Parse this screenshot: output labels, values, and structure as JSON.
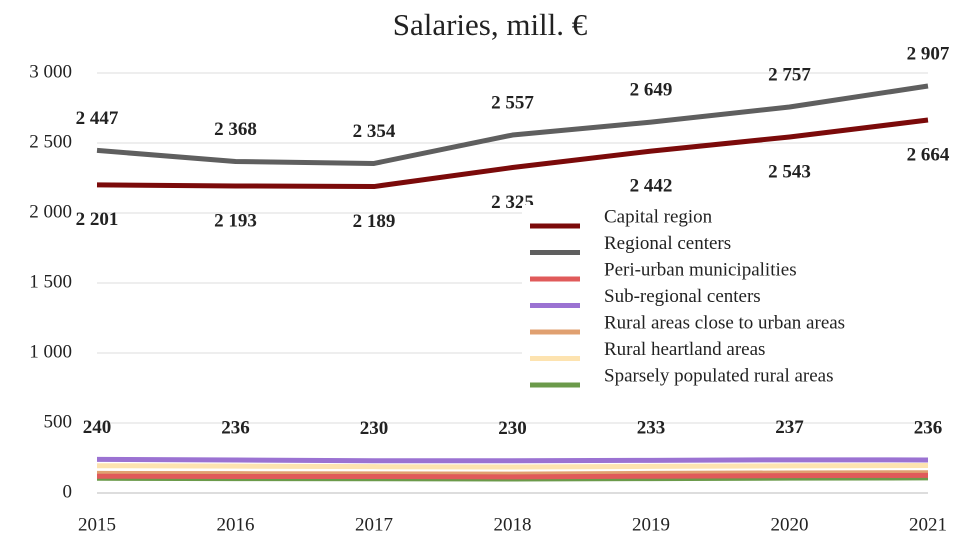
{
  "chart_data": {
    "type": "line",
    "title": "Salaries, mill. €",
    "x": [
      2015,
      2016,
      2017,
      2018,
      2019,
      2020,
      2021
    ],
    "xlim": [
      2015,
      2021
    ],
    "ylim": [
      0,
      3000
    ],
    "yticks": [
      0,
      500,
      {
        "value": 1000,
        "label": "1 000"
      },
      {
        "value": 1500,
        "label": "1 500"
      },
      {
        "value": 2000,
        "label": "2 000"
      },
      {
        "value": 2500,
        "label": "2 500"
      },
      {
        "value": 3000,
        "label": "3 000"
      }
    ],
    "grid": true,
    "legend": "right",
    "series": [
      {
        "name": "Capital region",
        "color": "#7b0a0a",
        "values": [
          2201,
          2193,
          2189,
          2325,
          2442,
          2543,
          2664
        ],
        "value_labels": [
          "2 201",
          "2 193",
          "2 189",
          "2 325",
          "2 442",
          "2 543",
          "2 664"
        ],
        "label_side": "below"
      },
      {
        "name": "Regional centers",
        "color": "#5f5f5f",
        "values": [
          2447,
          2368,
          2354,
          2557,
          2649,
          2757,
          2907
        ],
        "value_labels": [
          "2 447",
          "2 368",
          "2 354",
          "2 557",
          "2 649",
          "2 757",
          "2 907"
        ],
        "label_side": "above"
      },
      {
        "name": "Peri-urban municipalities",
        "color": "#e05a5a",
        "values": [
          120,
          118,
          118,
          115,
          120,
          124,
          126
        ]
      },
      {
        "name": "Sub-regional centers",
        "color": "#9b72d2",
        "values": [
          240,
          236,
          230,
          230,
          233,
          237,
          236
        ],
        "label_side": "above"
      },
      {
        "name": "Rural areas close to urban areas",
        "color": "#e0a070",
        "values": [
          140,
          138,
          137,
          135,
          140,
          143,
          145
        ]
      },
      {
        "name": "Rural heartland areas",
        "color": "#fde3b0",
        "values": [
          195,
          192,
          188,
          186,
          190,
          194,
          196
        ]
      },
      {
        "name": "Sparsely populated rural areas",
        "color": "#6b9a4a",
        "values": [
          105,
          103,
          102,
          100,
          103,
          106,
          108
        ]
      }
    ]
  }
}
